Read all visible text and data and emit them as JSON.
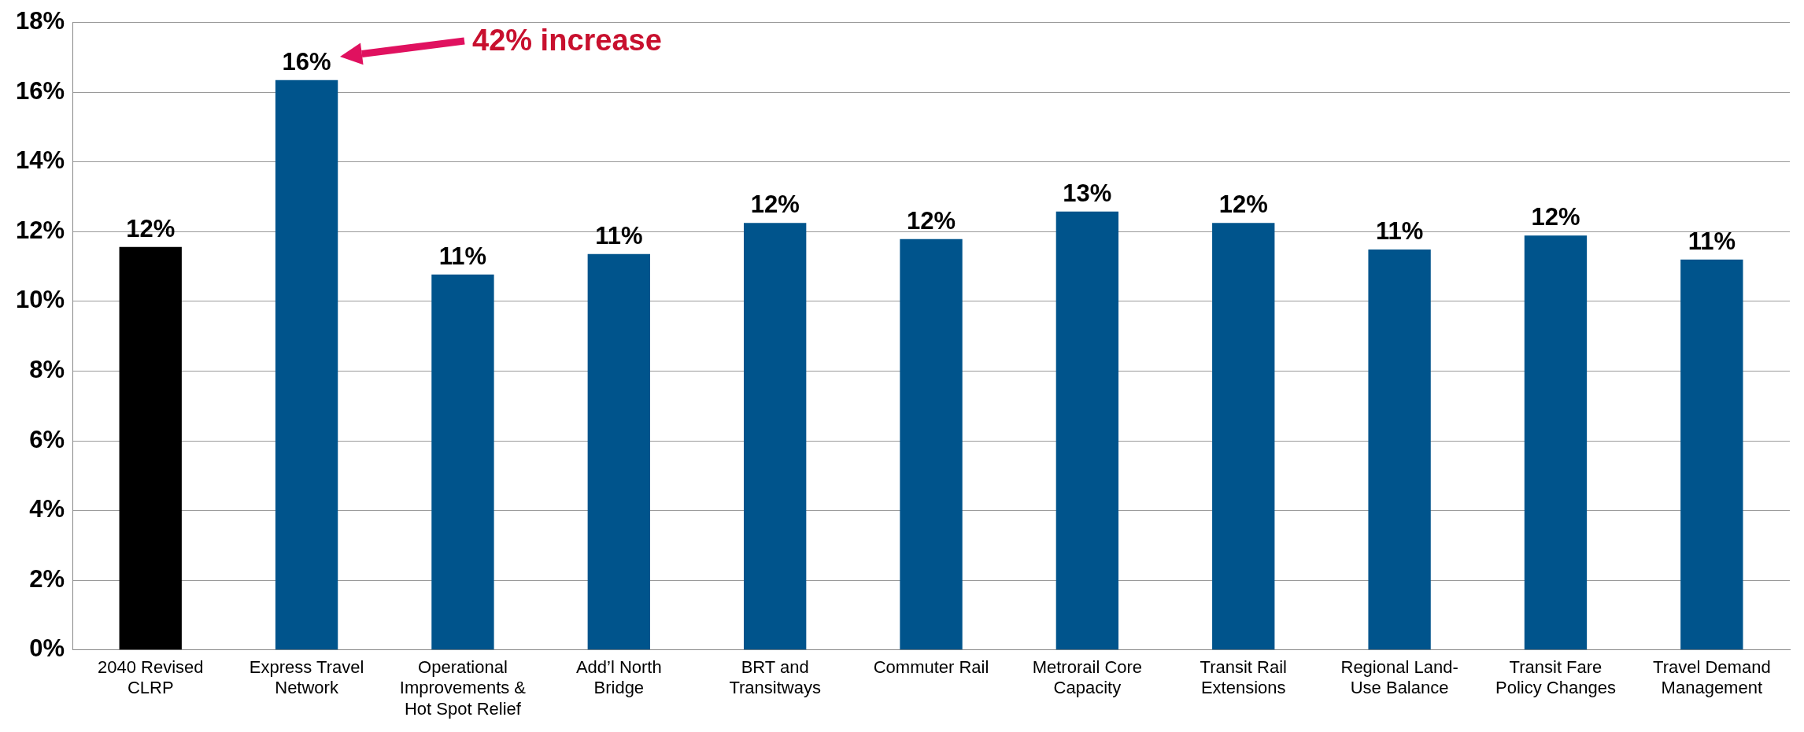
{
  "chart_data": {
    "type": "bar",
    "categories": [
      "2040 Revised CLRP",
      "Express Travel Network",
      "Operational Improvements & Hot Spot Relief",
      "Add’l North Bridge",
      "BRT and Transitways",
      "Commuter Rail",
      "Metrorail Core Capacity",
      "Transit Rail Extensions",
      "Regional Land-Use Balance",
      "Transit Fare Policy Changes",
      "Travel Demand Management"
    ],
    "values": [
      11.56,
      16.35,
      10.77,
      11.36,
      12.25,
      11.79,
      12.58,
      12.25,
      11.49,
      11.89,
      11.2
    ],
    "colors": [
      "#000000",
      "#00548c",
      "#00548c",
      "#00548c",
      "#00548c",
      "#00548c",
      "#00548c",
      "#00548c",
      "#00548c",
      "#00548c",
      "#00548c"
    ],
    "value_labels": [
      "12%",
      "16%",
      "11%",
      "11%",
      "12%",
      "12%",
      "13%",
      "12%",
      "11%",
      "12%",
      "11%"
    ],
    "ylim": [
      0,
      18
    ],
    "yticks": [
      {
        "value": 0,
        "label": "0%"
      },
      {
        "value": 2,
        "label": "2%"
      },
      {
        "value": 4,
        "label": "4%"
      },
      {
        "value": 6,
        "label": "6%"
      },
      {
        "value": 8,
        "label": "8%"
      },
      {
        "value": 10,
        "label": "10%"
      },
      {
        "value": 12,
        "label": "12%"
      },
      {
        "value": 14,
        "label": "14%"
      },
      {
        "value": 16,
        "label": "16%"
      },
      {
        "value": 18,
        "label": "18%"
      }
    ],
    "grid": "y",
    "legend": false,
    "annotations": [
      "42% increase"
    ]
  }
}
